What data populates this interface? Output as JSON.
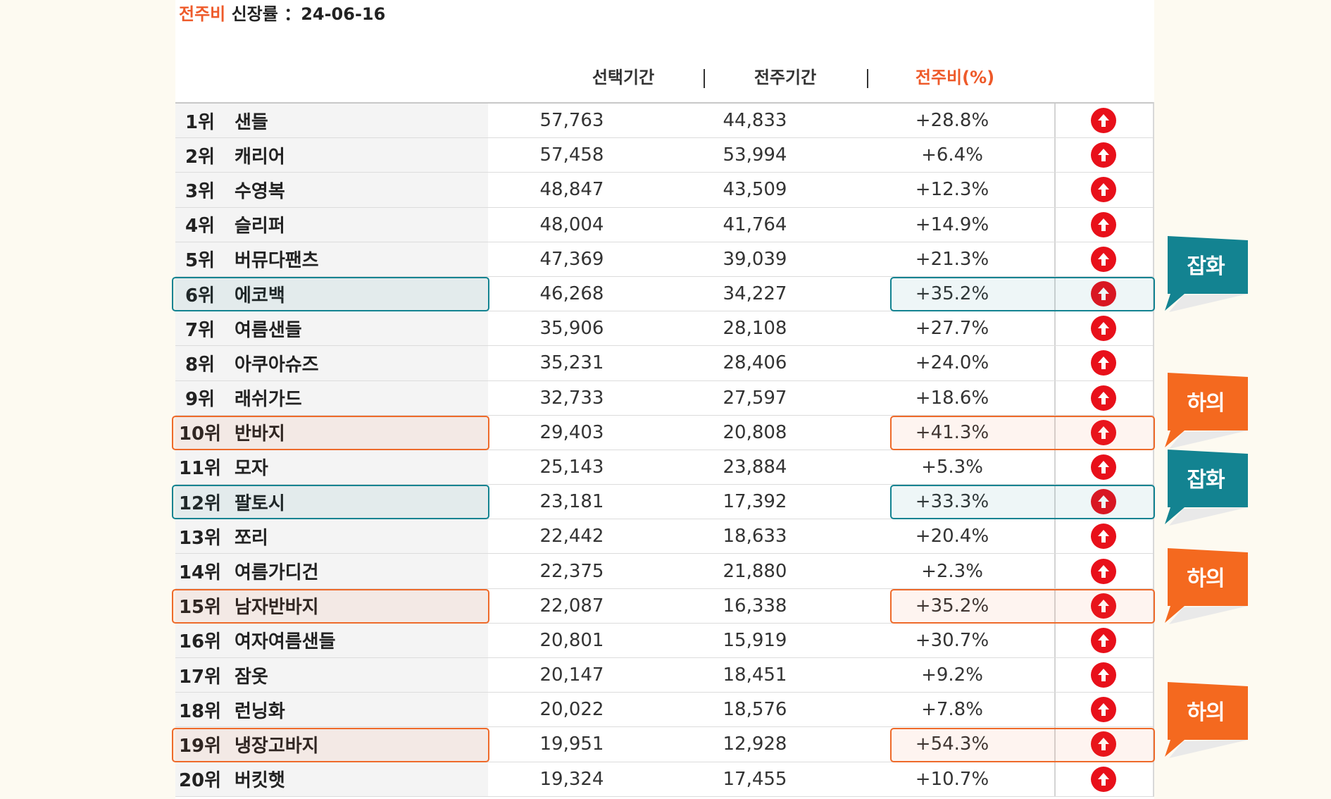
{
  "title": {
    "accent": "전주비",
    "text": " 신장률 ：24-06-16"
  },
  "headers": {
    "selected": "선택기간",
    "previous": "전주기간",
    "ratio": "전주비(%)",
    "separator": "|"
  },
  "rows": [
    {
      "rank": "1위",
      "keyword": "샌들",
      "selected": "57,763",
      "previous": "44,833",
      "ratio": "+28.8%"
    },
    {
      "rank": "2위",
      "keyword": "캐리어",
      "selected": "57,458",
      "previous": "53,994",
      "ratio": "+6.4%"
    },
    {
      "rank": "3위",
      "keyword": "수영복",
      "selected": "48,847",
      "previous": "43,509",
      "ratio": "+12.3%"
    },
    {
      "rank": "4위",
      "keyword": "슬리퍼",
      "selected": "48,004",
      "previous": "41,764",
      "ratio": "+14.9%"
    },
    {
      "rank": "5위",
      "keyword": "버뮤다팬츠",
      "selected": "47,369",
      "previous": "39,039",
      "ratio": "+21.3%"
    },
    {
      "rank": "6위",
      "keyword": "에코백",
      "selected": "46,268",
      "previous": "34,227",
      "ratio": "+35.2%",
      "highlight": "teal"
    },
    {
      "rank": "7위",
      "keyword": "여름샌들",
      "selected": "35,906",
      "previous": "28,108",
      "ratio": "+27.7%"
    },
    {
      "rank": "8위",
      "keyword": "아쿠아슈즈",
      "selected": "35,231",
      "previous": "28,406",
      "ratio": "+24.0%"
    },
    {
      "rank": "9위",
      "keyword": "래쉬가드",
      "selected": "32,733",
      "previous": "27,597",
      "ratio": "+18.6%"
    },
    {
      "rank": "10위",
      "keyword": "반바지",
      "selected": "29,403",
      "previous": "20,808",
      "ratio": "+41.3%",
      "highlight": "orange"
    },
    {
      "rank": "11위",
      "keyword": "모자",
      "selected": "25,143",
      "previous": "23,884",
      "ratio": "+5.3%"
    },
    {
      "rank": "12위",
      "keyword": "팔토시",
      "selected": "23,181",
      "previous": "17,392",
      "ratio": "+33.3%",
      "highlight": "teal"
    },
    {
      "rank": "13위",
      "keyword": "쪼리",
      "selected": "22,442",
      "previous": "18,633",
      "ratio": "+20.4%"
    },
    {
      "rank": "14위",
      "keyword": "여름가디건",
      "selected": "22,375",
      "previous": "21,880",
      "ratio": "+2.3%"
    },
    {
      "rank": "15위",
      "keyword": "남자반바지",
      "selected": "22,087",
      "previous": "16,338",
      "ratio": "+35.2%",
      "highlight": "orange"
    },
    {
      "rank": "16위",
      "keyword": "여자여름샌들",
      "selected": "20,801",
      "previous": "15,919",
      "ratio": "+30.7%"
    },
    {
      "rank": "17위",
      "keyword": "잠옷",
      "selected": "20,147",
      "previous": "18,451",
      "ratio": "+9.2%"
    },
    {
      "rank": "18위",
      "keyword": "런닝화",
      "selected": "20,022",
      "previous": "18,576",
      "ratio": "+7.8%"
    },
    {
      "rank": "19위",
      "keyword": "냉장고바지",
      "selected": "19,951",
      "previous": "12,928",
      "ratio": "+54.3%",
      "highlight": "orange"
    },
    {
      "rank": "20위",
      "keyword": "버킷햇",
      "selected": "19,324",
      "previous": "17,455",
      "ratio": "+10.7%"
    }
  ],
  "tags": [
    {
      "label": "잡화",
      "color": "#138391"
    },
    {
      "label": "하의",
      "color": "#f4691f"
    },
    {
      "label": "잡화",
      "color": "#138391"
    },
    {
      "label": "하의",
      "color": "#f4691f"
    },
    {
      "label": "하의",
      "color": "#f4691f"
    }
  ],
  "icons": {
    "trend": "arrow-up-circle-icon",
    "up_color": "#e8101a"
  }
}
